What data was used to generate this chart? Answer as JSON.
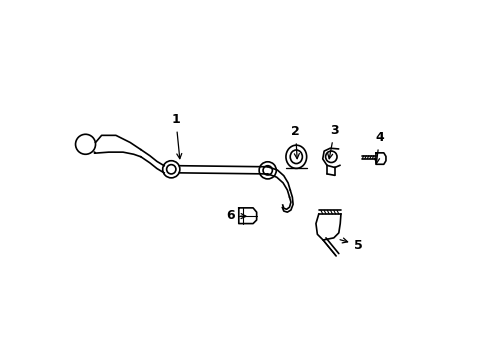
{
  "background_color": "#ffffff",
  "line_color": "#000000",
  "line_width": 1.2,
  "fig_width": 4.89,
  "fig_height": 3.6,
  "dpi": 100
}
